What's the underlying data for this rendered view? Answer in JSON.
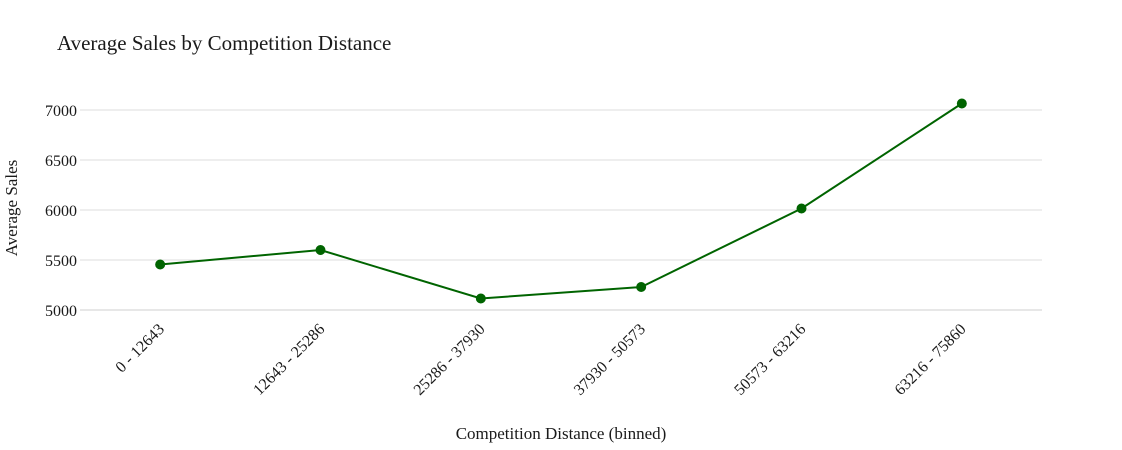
{
  "chart_data": {
    "type": "line",
    "title": "Average Sales by Competition Distance",
    "xlabel": "Competition Distance (binned)",
    "ylabel": "Average Sales",
    "categories": [
      "0 - 12643",
      "12643 - 25286",
      "25286 - 37930",
      "37930 - 50573",
      "50573 - 63216",
      "63216 - 75860"
    ],
    "series": [
      {
        "values": [
          5455,
          5600,
          5115,
          5230,
          6015,
          7065
        ]
      }
    ],
    "ylim": [
      4990,
      7150
    ],
    "yticks": [
      5000,
      5500,
      6000,
      6500,
      7000
    ],
    "grid": true,
    "legend": "none",
    "line_color": "#006400",
    "marker_color": "#006400"
  }
}
